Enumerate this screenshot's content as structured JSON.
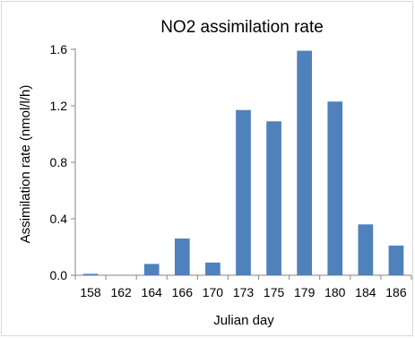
{
  "chart_data": {
    "type": "bar",
    "title": "NO2 assimilation rate",
    "xlabel": "Julian day",
    "ylabel": "Assimilation rate (nmol/l/h)",
    "categories": [
      "158",
      "162",
      "164",
      "166",
      "170",
      "173",
      "175",
      "179",
      "180",
      "184",
      "186"
    ],
    "values": [
      0.01,
      0.0,
      0.08,
      0.26,
      0.09,
      1.17,
      1.09,
      1.59,
      1.23,
      0.36,
      0.21
    ],
    "ylim": [
      0,
      1.6
    ],
    "yticks": [
      "0.0",
      "0.4",
      "0.8",
      "1.2",
      "1.6"
    ],
    "grid": false,
    "bar_color": "#4f81bd"
  }
}
